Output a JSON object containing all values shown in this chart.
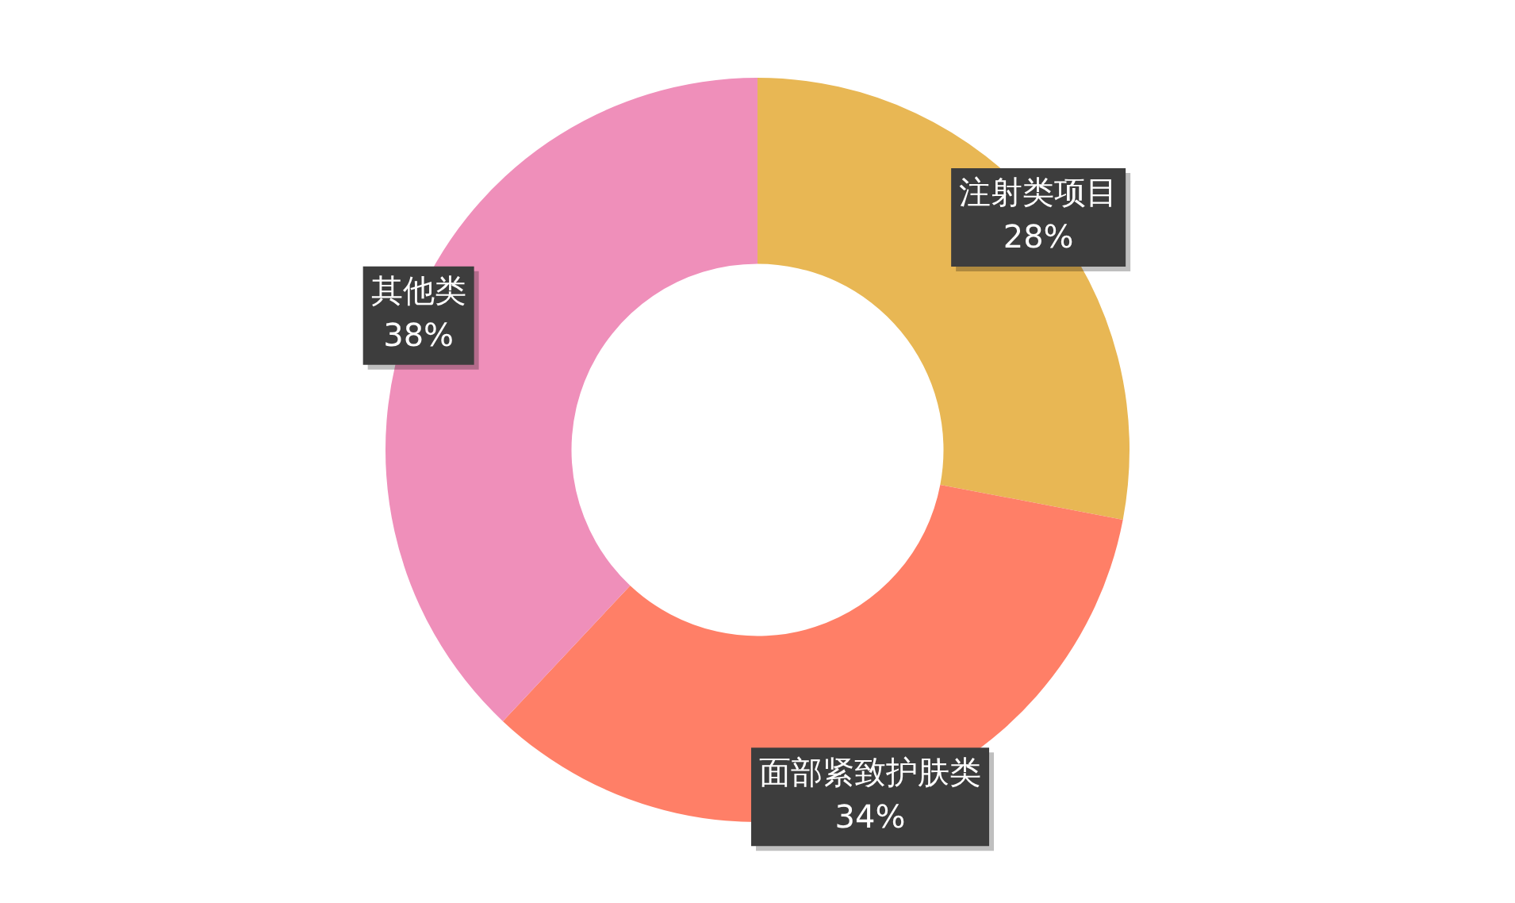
{
  "chart_data": {
    "type": "donut",
    "categories": [
      "注射类项目",
      "面部紧致护肤类",
      "其他类"
    ],
    "values": [
      28,
      34,
      38
    ],
    "colors": [
      "#e8b754",
      "#ff7f67",
      "#ef8fba"
    ],
    "value_labels": [
      "28%",
      "34%",
      "38%"
    ],
    "legend": false
  }
}
